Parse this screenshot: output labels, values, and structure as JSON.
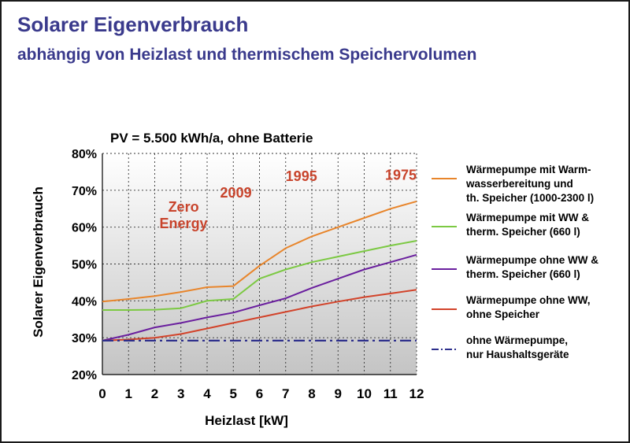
{
  "header": {
    "title": "Solarer Eigenverbrauch",
    "subtitle": "abhängig von Heizlast und thermischem Speichervolumen"
  },
  "colors": {
    "title": "#3a3a8c",
    "annotation": "#c8442c",
    "plot_top": "#ffffff",
    "plot_bottom": "#c4c4c4"
  },
  "chart_data": {
    "type": "line",
    "title": "PV = 5.500 kWh/a, ohne Batterie",
    "xlabel": "Heizlast [kW]",
    "ylabel": "Solarer Eigenverbrauch",
    "xlim": [
      0,
      12
    ],
    "ylim": [
      20,
      80
    ],
    "x_ticks": [
      0,
      1,
      2,
      3,
      4,
      5,
      6,
      7,
      8,
      9,
      10,
      11,
      12
    ],
    "y_ticks": [
      20,
      30,
      40,
      50,
      60,
      70,
      80
    ],
    "y_tick_labels": [
      "20%",
      "30%",
      "40%",
      "50%",
      "60%",
      "70%",
      "80%"
    ],
    "grid": true,
    "legend_position": "right",
    "x": [
      0,
      1,
      2,
      3,
      4,
      5,
      6,
      7,
      8,
      9,
      10,
      11,
      12
    ],
    "series": [
      {
        "name": "Wärmepumpe mit Warm-\nwasserbereitung und\nth. Speicher (1000-2300 l)",
        "color": "#e8852b",
        "style": "solid",
        "values": [
          39.8,
          40.5,
          41.3,
          42.4,
          43.7,
          44.0,
          49.5,
          54.3,
          57.5,
          60.0,
          62.5,
          65.0,
          67.0
        ]
      },
      {
        "name": "Wärmepumpe mit WW &\ntherm. Speicher (660 l)",
        "color": "#7cc943",
        "style": "solid",
        "values": [
          37.5,
          37.5,
          37.6,
          38.0,
          40.0,
          40.5,
          46.0,
          48.5,
          50.5,
          52.0,
          53.5,
          55.0,
          56.3
        ]
      },
      {
        "name": "Wärmepumpe ohne WW &\ntherm. Speicher (660 l)",
        "color": "#6a1f9e",
        "style": "solid",
        "values": [
          29.2,
          30.8,
          32.8,
          34.0,
          35.5,
          36.8,
          38.8,
          40.7,
          43.5,
          46.0,
          48.5,
          50.5,
          52.5
        ]
      },
      {
        "name": "Wärmepumpe ohne WW,\nohne Speicher",
        "color": "#d2432a",
        "style": "solid",
        "values": [
          29.2,
          29.5,
          30.0,
          31.0,
          32.5,
          34.0,
          35.5,
          37.0,
          38.5,
          39.8,
          41.0,
          42.0,
          43.0
        ]
      },
      {
        "name": "ohne Wärmepumpe,\nnur Haushaltsgeräte",
        "color": "#2d2f8c",
        "style": "dashdot",
        "values": [
          29.2,
          29.2,
          29.2,
          29.2,
          29.2,
          29.2,
          29.2,
          29.2,
          29.2,
          29.2,
          29.2,
          29.2,
          29.2
        ]
      }
    ],
    "annotations": [
      {
        "text": "Zero\nEnergy",
        "x": 3.1,
        "y": 64.2
      },
      {
        "text": "2009",
        "x": 5.1,
        "y": 68.0
      },
      {
        "text": "1995",
        "x": 7.6,
        "y": 72.5
      },
      {
        "text": "1975",
        "x": 11.4,
        "y": 72.8
      }
    ]
  }
}
